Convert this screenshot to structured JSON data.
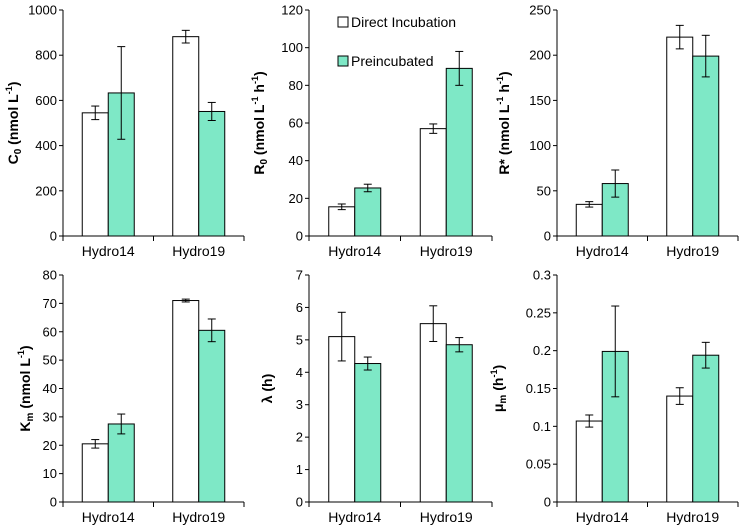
{
  "colors": {
    "direct": "#ffffff",
    "preincubated": "#7ee8c6",
    "outline": "#000000"
  },
  "legend": {
    "series": [
      "Direct Incubation",
      "Preincubated"
    ],
    "panel": 1,
    "placement": "top-right of panel"
  },
  "chart_data": [
    {
      "type": "bar",
      "ylabel_parts": [
        [
          "C",
          ""
        ],
        [
          "0",
          "sub"
        ],
        [
          " (nmol L",
          ""
        ],
        [
          "-1",
          "sup"
        ],
        [
          ")",
          ""
        ]
      ],
      "categories": [
        "Hydro14",
        "Hydro19"
      ],
      "ylim": [
        0,
        1000
      ],
      "yticks": [
        "0",
        "200",
        "400",
        "600",
        "800",
        "1000"
      ],
      "series": [
        {
          "name": "Direct Incubation",
          "values": [
            545,
            882
          ],
          "errors": [
            30,
            28
          ]
        },
        {
          "name": "Preincubated",
          "values": [
            633,
            551
          ],
          "errors": [
            205,
            40
          ]
        }
      ]
    },
    {
      "type": "bar",
      "ylabel_parts": [
        [
          "R",
          ""
        ],
        [
          "0",
          "sub"
        ],
        [
          " (nmol L",
          ""
        ],
        [
          "-1",
          "sup"
        ],
        [
          " h",
          ""
        ],
        [
          "-1",
          "sup"
        ],
        [
          ")",
          ""
        ]
      ],
      "categories": [
        "Hydro14",
        "Hydro19"
      ],
      "ylim": [
        0,
        120
      ],
      "yticks": [
        "0",
        "20",
        "40",
        "60",
        "80",
        "100",
        "120"
      ],
      "series": [
        {
          "name": "Direct Incubation",
          "values": [
            15.5,
            57
          ],
          "errors": [
            1.5,
            2.5
          ]
        },
        {
          "name": "Preincubated",
          "values": [
            25.5,
            89
          ],
          "errors": [
            2,
            9
          ]
        }
      ]
    },
    {
      "type": "bar",
      "ylabel_parts": [
        [
          "R* (nmol L",
          ""
        ],
        [
          "-1",
          "sup"
        ],
        [
          " h",
          ""
        ],
        [
          "-1",
          "sup"
        ],
        [
          ")",
          ""
        ]
      ],
      "categories": [
        "Hydro14",
        "Hydro19"
      ],
      "ylim": [
        0,
        250
      ],
      "yticks": [
        "0",
        "50",
        "100",
        "150",
        "200",
        "250"
      ],
      "series": [
        {
          "name": "Direct Incubation",
          "values": [
            35,
            220
          ],
          "errors": [
            3,
            13
          ]
        },
        {
          "name": "Preincubated",
          "values": [
            58,
            199
          ],
          "errors": [
            15,
            23
          ]
        }
      ]
    },
    {
      "type": "bar",
      "ylabel_parts": [
        [
          "K",
          ""
        ],
        [
          "m",
          "sub"
        ],
        [
          "  (nmol L",
          ""
        ],
        [
          "-1",
          "sup"
        ],
        [
          ")",
          ""
        ]
      ],
      "categories": [
        "Hydro14",
        "Hydro19"
      ],
      "ylim": [
        0,
        80
      ],
      "yticks": [
        "0",
        "10",
        "20",
        "30",
        "40",
        "50",
        "60",
        "70",
        "80"
      ],
      "series": [
        {
          "name": "Direct Incubation",
          "values": [
            20.5,
            71
          ],
          "errors": [
            1.5,
            0.5
          ]
        },
        {
          "name": "Preincubated",
          "values": [
            27.5,
            60.5
          ],
          "errors": [
            3.5,
            4
          ]
        }
      ]
    },
    {
      "type": "bar",
      "ylabel_parts": [
        [
          "λ (h)",
          ""
        ]
      ],
      "categories": [
        "Hydro14",
        "Hydro19"
      ],
      "ylim": [
        0,
        7
      ],
      "yticks": [
        "0",
        "1",
        "2",
        "3",
        "4",
        "5",
        "6",
        "7"
      ],
      "series": [
        {
          "name": "Direct Incubation",
          "values": [
            5.1,
            5.5
          ],
          "errors": [
            0.75,
            0.55
          ]
        },
        {
          "name": "Preincubated",
          "values": [
            4.27,
            4.85
          ],
          "errors": [
            0.2,
            0.22
          ]
        }
      ]
    },
    {
      "type": "bar",
      "ylabel_parts": [
        [
          "μ",
          ""
        ],
        [
          "m",
          "sub"
        ],
        [
          " (h",
          ""
        ],
        [
          "-1",
          "sup"
        ],
        [
          ")",
          ""
        ]
      ],
      "categories": [
        "Hydro14",
        "Hydro19"
      ],
      "ylim": [
        0,
        0.3
      ],
      "yticks": [
        "0",
        "0.05",
        "0.1",
        "0.15",
        "0.2",
        "0.25",
        "0.3"
      ],
      "series": [
        {
          "name": "Direct Incubation",
          "values": [
            0.107,
            0.14
          ],
          "errors": [
            0.008,
            0.011
          ]
        },
        {
          "name": "Preincubated",
          "values": [
            0.199,
            0.194
          ],
          "errors": [
            0.06,
            0.017
          ]
        }
      ]
    }
  ]
}
